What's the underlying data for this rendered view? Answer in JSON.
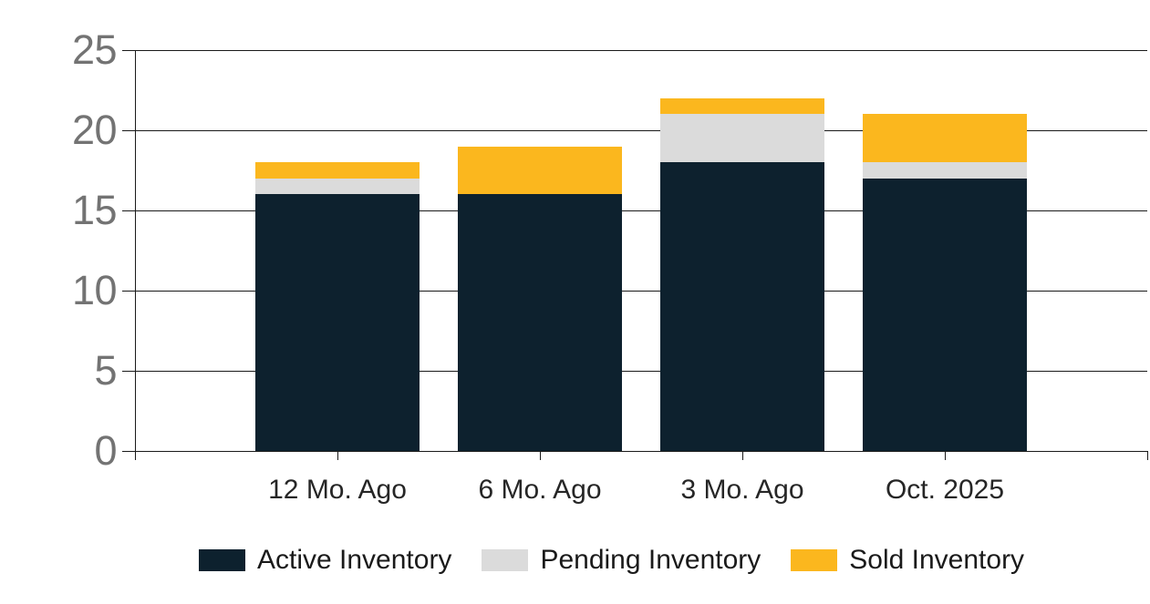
{
  "chart_data": {
    "type": "bar",
    "stacked": true,
    "categories": [
      "12 Mo. Ago",
      "6 Mo. Ago",
      "3 Mo. Ago",
      "Oct. 2025"
    ],
    "series": [
      {
        "name": "Active Inventory",
        "color": "#0D212E",
        "values": [
          16,
          16,
          18,
          17
        ]
      },
      {
        "name": "Pending Inventory",
        "color": "#DBDBDB",
        "values": [
          1,
          0,
          3,
          1
        ]
      },
      {
        "name": "Sold Inventory",
        "color": "#FBB71E",
        "values": [
          1,
          3,
          1,
          3
        ]
      }
    ],
    "stack_totals": [
      18,
      19,
      22,
      21
    ],
    "ylim": [
      0,
      25
    ],
    "yticks": [
      0,
      5,
      10,
      15,
      20,
      25
    ],
    "grid": true,
    "legend_position": "bottom"
  },
  "style": {
    "background": "#FFFFFF",
    "axis_color": "#1A1A1A",
    "ytick_label_color": "#737373",
    "xtick_label_color": "#262626",
    "legend_text_color": "#1A1A1A"
  }
}
